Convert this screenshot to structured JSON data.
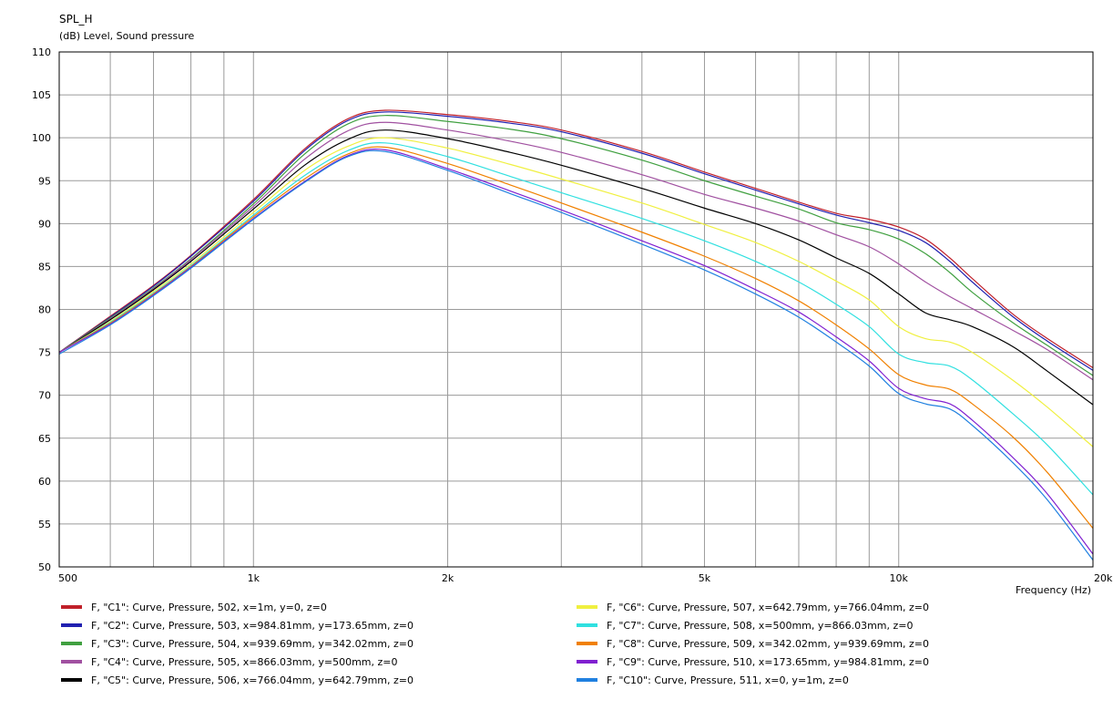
{
  "chart_data": {
    "type": "line",
    "title": "SPL_H",
    "ylabel": "(dB)  Level, Sound pressure",
    "xlabel": "Frequency  (Hz)",
    "xscale": "log",
    "xlim": [
      500,
      20000
    ],
    "ylim": [
      50,
      110
    ],
    "grid": true,
    "legend_position": "bottom",
    "y_ticks": [
      {
        "value": 50,
        "label": "50"
      },
      {
        "value": 55,
        "label": "55"
      },
      {
        "value": 60,
        "label": "60"
      },
      {
        "value": 65,
        "label": "65"
      },
      {
        "value": 70,
        "label": "70"
      },
      {
        "value": 75,
        "label": "75"
      },
      {
        "value": 80,
        "label": "80"
      },
      {
        "value": 85,
        "label": "85"
      },
      {
        "value": 90,
        "label": "90"
      },
      {
        "value": 95,
        "label": "95"
      },
      {
        "value": 100,
        "label": "100"
      },
      {
        "value": 105,
        "label": "105"
      },
      {
        "value": 110,
        "label": "110"
      }
    ],
    "x_ticks": [
      {
        "value": 500,
        "label": "500"
      },
      {
        "value": 1000,
        "label": "1k"
      },
      {
        "value": 2000,
        "label": "2k"
      },
      {
        "value": 5000,
        "label": "5k"
      },
      {
        "value": 10000,
        "label": "10k"
      },
      {
        "value": 20000,
        "label": "20k"
      }
    ],
    "x_minor_grid": [
      600,
      700,
      800,
      900,
      1000,
      2000,
      3000,
      4000,
      5000,
      6000,
      7000,
      8000,
      9000,
      10000
    ],
    "x": [
      500,
      600,
      700,
      800,
      1000,
      1200,
      1400,
      1600,
      2000,
      2500,
      3000,
      4000,
      5000,
      6000,
      7000,
      8000,
      9000,
      10000,
      11000,
      12000,
      13000,
      15000,
      17000,
      20000
    ],
    "series": [
      {
        "name": "F, \"C1\": Curve, Pressure, 502, x=1m, y=0, z=0",
        "color": "#c0202a",
        "values": [
          75.0,
          79.2,
          82.8,
          86.3,
          92.8,
          98.7,
          102.2,
          103.2,
          102.7,
          101.9,
          100.9,
          98.4,
          96.0,
          94.1,
          92.5,
          91.2,
          90.5,
          89.6,
          88.2,
          86.0,
          83.6,
          79.5,
          76.6,
          73.2
        ]
      },
      {
        "name": "F, \"C2\": Curve, Pressure, 503, x=984.81mm, y=173.65mm, z=0",
        "color": "#2020b0",
        "values": [
          75.0,
          79.1,
          82.7,
          86.2,
          92.6,
          98.5,
          102.0,
          103.0,
          102.5,
          101.7,
          100.7,
          98.2,
          95.8,
          93.9,
          92.3,
          91.0,
          90.1,
          89.2,
          87.8,
          85.6,
          83.2,
          79.2,
          76.3,
          72.9
        ]
      },
      {
        "name": "F, \"C3\": Curve, Pressure, 504, x=939.69mm, y=342.02mm, z=0",
        "color": "#40a040",
        "values": [
          75.0,
          79.0,
          82.5,
          85.9,
          92.3,
          98.1,
          101.6,
          102.6,
          101.9,
          101.0,
          99.9,
          97.4,
          95.0,
          93.2,
          91.7,
          90.1,
          89.3,
          88.2,
          86.5,
          84.3,
          82.0,
          78.5,
          75.8,
          72.3
        ]
      },
      {
        "name": "F, \"C4\": Curve, Pressure, 505, x=866.03mm, y=500mm, z=0",
        "color": "#a050a0",
        "values": [
          75.0,
          78.9,
          82.4,
          85.8,
          92.0,
          97.5,
          100.8,
          101.8,
          100.9,
          99.6,
          98.3,
          95.7,
          93.4,
          91.8,
          90.3,
          88.7,
          87.3,
          85.3,
          83.2,
          81.5,
          80.1,
          77.6,
          75.3,
          71.8
        ]
      },
      {
        "name": "F, \"C5\": Curve, Pressure, 506, x=766.04mm, y=642.79mm, z=0",
        "color": "#000000",
        "values": [
          75.0,
          78.8,
          82.3,
          85.6,
          91.7,
          96.8,
          99.8,
          100.9,
          99.9,
          98.3,
          96.8,
          94.1,
          91.8,
          90.0,
          88.1,
          86.0,
          84.2,
          81.8,
          79.6,
          78.8,
          78.0,
          75.7,
          72.8,
          68.9
        ]
      },
      {
        "name": "F, \"C6\": Curve, Pressure, 507, x=642.79mm, y=766.04mm, z=0",
        "color": "#f0f040",
        "values": [
          75.0,
          78.6,
          82.1,
          85.3,
          91.3,
          96.2,
          99.0,
          100.0,
          98.8,
          96.9,
          95.2,
          92.4,
          89.9,
          87.8,
          85.6,
          83.3,
          81.1,
          78.0,
          76.6,
          76.2,
          75.0,
          71.8,
          68.6,
          64.0
        ]
      },
      {
        "name": "F, \"C7\": Curve, Pressure, 508, x=500mm, y=866.03mm, z=0",
        "color": "#30e0e0",
        "values": [
          75.0,
          78.5,
          81.9,
          85.1,
          91.0,
          95.6,
          98.5,
          99.4,
          97.8,
          95.5,
          93.6,
          90.6,
          88.0,
          85.6,
          83.2,
          80.6,
          78.0,
          74.8,
          73.8,
          73.4,
          71.8,
          67.9,
          64.2,
          58.4
        ]
      },
      {
        "name": "F, \"C8\": Curve, Pressure, 509, x=342.02mm, y=939.69mm, z=0",
        "color": "#f08000",
        "values": [
          75.0,
          78.4,
          81.8,
          85.0,
          90.8,
          95.2,
          98.1,
          98.9,
          97.0,
          94.5,
          92.4,
          89.0,
          86.2,
          83.6,
          81.0,
          78.2,
          75.4,
          72.4,
          71.2,
          70.7,
          69.0,
          65.2,
          61.0,
          54.5
        ]
      },
      {
        "name": "F, \"C9\": Curve, Pressure, 510, x=173.65mm, y=984.81mm, z=0",
        "color": "#8020d0",
        "values": [
          75.0,
          78.3,
          81.7,
          84.9,
          90.6,
          94.9,
          97.9,
          98.6,
          96.4,
          93.8,
          91.6,
          88.0,
          85.1,
          82.3,
          79.7,
          76.8,
          74.0,
          70.8,
          69.6,
          69.0,
          67.1,
          62.8,
          58.5,
          51.5
        ]
      },
      {
        "name": "F, \"C10\": Curve, Pressure, 511, x=0, y=1m, z=0",
        "color": "#2080e0",
        "values": [
          74.8,
          78.2,
          81.6,
          84.8,
          90.5,
          94.8,
          97.8,
          98.4,
          96.2,
          93.5,
          91.3,
          87.6,
          84.6,
          81.8,
          79.1,
          76.2,
          73.4,
          70.2,
          69.0,
          68.4,
          66.5,
          62.2,
          57.8,
          50.8
        ]
      }
    ]
  }
}
